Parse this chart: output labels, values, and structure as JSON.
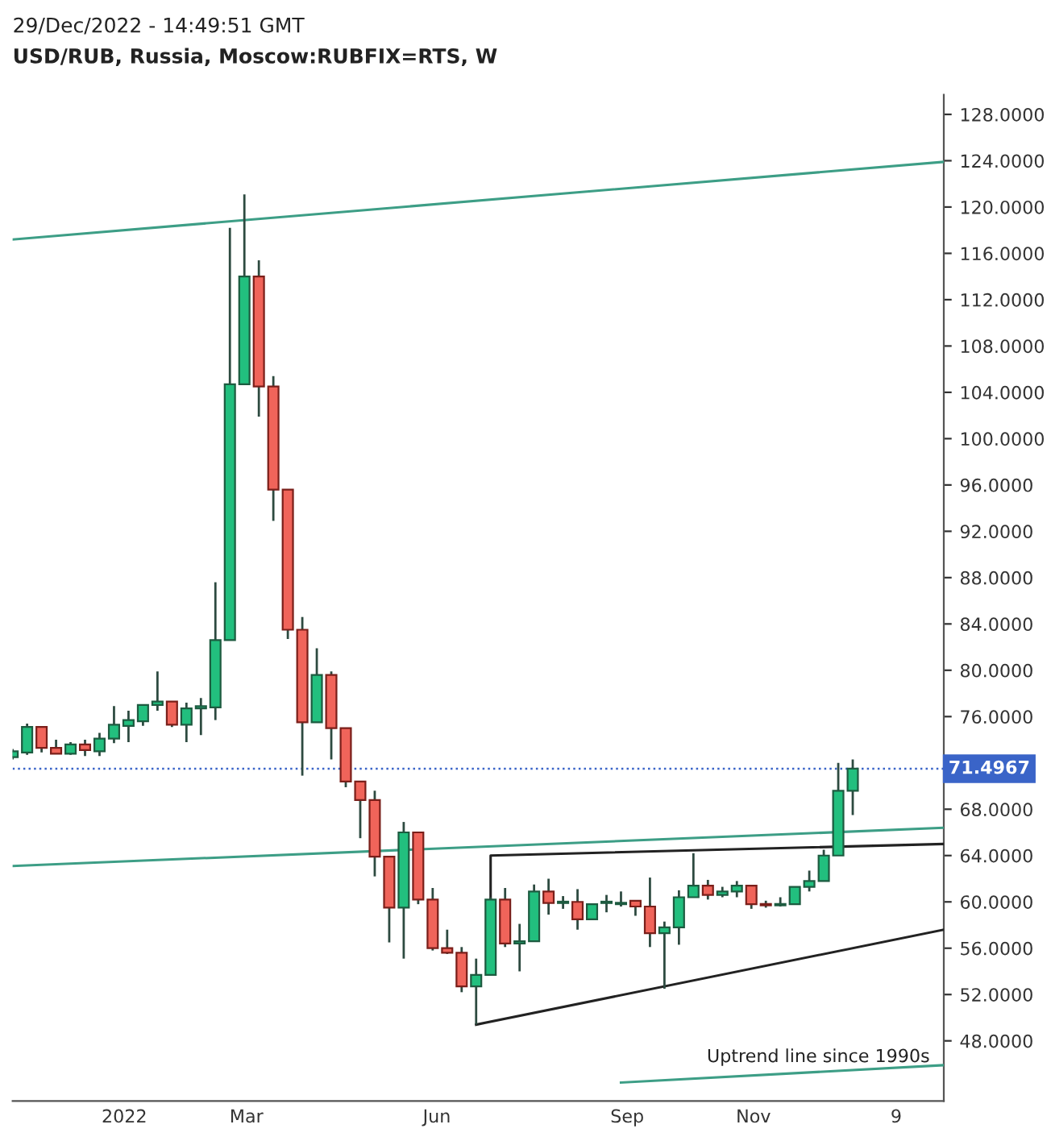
{
  "chart_data": {
    "type": "candlestick",
    "title": "29/Dec/2022 - 14:49:51 GMT",
    "subtitle": "USD/RUB, Russia, Moscow:RUBFIX=RTS, W",
    "x": [
      "2021-11-08",
      "2021-11-15",
      "2021-11-22",
      "2021-11-29",
      "2021-12-06",
      "2021-12-13",
      "2021-12-20",
      "2021-12-27",
      "2022-01-03",
      "2022-01-10",
      "2022-01-17",
      "2022-01-24",
      "2022-01-31",
      "2022-02-07",
      "2022-02-14",
      "2022-02-21",
      "2022-02-28",
      "2022-03-07",
      "2022-03-14",
      "2022-03-21",
      "2022-03-28",
      "2022-04-04",
      "2022-04-11",
      "2022-04-18",
      "2022-04-25",
      "2022-05-02",
      "2022-05-09",
      "2022-05-16",
      "2022-05-23",
      "2022-05-30",
      "2022-06-06",
      "2022-06-13",
      "2022-06-20",
      "2022-06-27",
      "2022-07-04",
      "2022-07-11",
      "2022-07-18",
      "2022-07-25",
      "2022-08-01",
      "2022-08-08",
      "2022-08-15",
      "2022-08-22",
      "2022-08-29",
      "2022-09-05",
      "2022-09-12",
      "2022-09-19",
      "2022-09-26",
      "2022-10-03",
      "2022-10-10",
      "2022-10-17",
      "2022-10-24",
      "2022-10-31",
      "2022-11-07",
      "2022-11-14",
      "2022-11-21",
      "2022-11-28",
      "2022-12-05",
      "2022-12-12",
      "2022-12-19"
    ],
    "ohlc": [
      [
        72.5,
        73.2,
        72.3,
        73.0
      ],
      [
        72.9,
        75.4,
        72.7,
        75.1
      ],
      [
        75.1,
        75.1,
        72.9,
        73.3
      ],
      [
        73.3,
        74.0,
        72.8,
        72.8
      ],
      [
        72.8,
        73.8,
        72.7,
        73.6
      ],
      [
        73.6,
        74.0,
        72.6,
        73.1
      ],
      [
        73.0,
        74.6,
        72.6,
        74.1
      ],
      [
        74.1,
        76.9,
        73.7,
        75.3
      ],
      [
        75.2,
        76.5,
        73.8,
        75.7
      ],
      [
        75.6,
        77.0,
        75.2,
        77.0
      ],
      [
        77.0,
        79.9,
        76.5,
        77.3
      ],
      [
        77.3,
        77.3,
        75.1,
        75.3
      ],
      [
        75.3,
        77.2,
        73.8,
        76.7
      ],
      [
        76.7,
        77.6,
        74.4,
        76.9
      ],
      [
        76.8,
        87.6,
        75.7,
        82.6
      ],
      [
        82.6,
        118.2,
        82.6,
        104.7
      ],
      [
        104.7,
        121.1,
        104.7,
        114.0
      ],
      [
        114.0,
        115.4,
        101.9,
        104.5
      ],
      [
        104.5,
        105.4,
        92.9,
        95.6
      ],
      [
        95.6,
        95.6,
        82.7,
        83.5
      ],
      [
        83.5,
        84.6,
        70.9,
        75.5
      ],
      [
        75.5,
        81.9,
        75.5,
        79.6
      ],
      [
        79.6,
        79.9,
        72.3,
        75.0
      ],
      [
        75.0,
        75.0,
        69.9,
        70.4
      ],
      [
        70.4,
        70.4,
        65.5,
        68.8
      ],
      [
        68.8,
        69.6,
        62.2,
        63.9
      ],
      [
        63.9,
        63.9,
        56.5,
        59.5
      ],
      [
        59.5,
        66.9,
        55.1,
        66.0
      ],
      [
        66.0,
        66.0,
        59.8,
        60.2
      ],
      [
        60.2,
        61.2,
        55.8,
        56.0
      ],
      [
        56.0,
        57.6,
        55.5,
        55.6
      ],
      [
        55.6,
        56.1,
        52.2,
        52.7
      ],
      [
        52.7,
        55.1,
        49.4,
        53.7
      ],
      [
        53.7,
        60.4,
        53.7,
        60.2
      ],
      [
        60.2,
        61.2,
        56.1,
        56.4
      ],
      [
        56.4,
        58.1,
        54.0,
        56.6
      ],
      [
        56.6,
        61.5,
        56.6,
        60.9
      ],
      [
        60.9,
        62.0,
        58.9,
        59.9
      ],
      [
        59.9,
        60.5,
        59.4,
        60.0
      ],
      [
        60.0,
        61.1,
        57.6,
        58.5
      ],
      [
        58.5,
        59.8,
        58.5,
        59.8
      ],
      [
        59.9,
        60.6,
        59.1,
        60.0
      ],
      [
        59.8,
        60.9,
        59.6,
        59.9
      ],
      [
        60.1,
        60.1,
        58.8,
        59.6
      ],
      [
        59.6,
        62.1,
        56.1,
        57.3
      ],
      [
        57.3,
        58.3,
        52.5,
        57.8
      ],
      [
        57.8,
        61.0,
        56.3,
        60.4
      ],
      [
        60.4,
        64.2,
        60.4,
        61.4
      ],
      [
        61.4,
        61.9,
        60.2,
        60.6
      ],
      [
        60.6,
        61.3,
        60.4,
        60.9
      ],
      [
        60.9,
        61.8,
        60.4,
        61.4
      ],
      [
        61.4,
        61.4,
        59.4,
        59.8
      ],
      [
        59.8,
        60.1,
        59.5,
        59.7
      ],
      [
        59.7,
        60.4,
        59.6,
        59.8
      ],
      [
        59.8,
        61.3,
        59.8,
        61.3
      ],
      [
        61.3,
        62.7,
        60.9,
        61.8
      ],
      [
        61.8,
        64.5,
        61.8,
        64.0
      ],
      [
        64.0,
        72.0,
        64.0,
        69.6
      ],
      [
        69.6,
        72.3,
        67.5,
        71.5
      ]
    ],
    "colors": [
      "#22bf7e",
      "#22bf7e",
      "#f0645a",
      "#f0645a",
      "#22bf7e",
      "#f0645a",
      "#22bf7e",
      "#22bf7e",
      "#22bf7e",
      "#22bf7e",
      "#22bf7e",
      "#f0645a",
      "#22bf7e",
      "#22bf7e",
      "#22bf7e",
      "#22bf7e",
      "#22bf7e",
      "#f0645a",
      "#f0645a",
      "#f0645a",
      "#f0645a",
      "#22bf7e",
      "#f0645a",
      "#f0645a",
      "#f0645a",
      "#f0645a",
      "#f0645a",
      "#22bf7e",
      "#f0645a",
      "#f0645a",
      "#f0645a",
      "#f0645a",
      "#22bf7e",
      "#22bf7e",
      "#f0645a",
      "#22bf7e",
      "#22bf7e",
      "#f0645a",
      "#22bf7e",
      "#f0645a",
      "#22bf7e",
      "#22bf7e",
      "#22bf7e",
      "#f0645a",
      "#f0645a",
      "#22bf7e",
      "#22bf7e",
      "#22bf7e",
      "#f0645a",
      "#22bf7e",
      "#22bf7e",
      "#f0645a",
      "#f0645a",
      "#22bf7e",
      "#22bf7e",
      "#22bf7e",
      "#22bf7e",
      "#22bf7e",
      "#22bf7e"
    ],
    "series": [
      {
        "type": "line",
        "color": "#3d9e86",
        "x": [
          "2021-11-08",
          "2023-02-01"
        ],
        "values": [
          117.2,
          123.9
        ]
      },
      {
        "type": "line",
        "color": "#3d9e86",
        "x": [
          "2021-11-08",
          "2023-02-01"
        ],
        "values": [
          63.1,
          66.4
        ]
      },
      {
        "type": "line",
        "color": "#3d9e86",
        "x": [
          "2022-08-29",
          "2023-02-01"
        ],
        "values": [
          44.4,
          45.9
        ]
      },
      {
        "type": "line",
        "color": "#222222",
        "x": [
          "2022-06-27",
          "2022-06-27",
          "2023-02-01"
        ],
        "values": [
          60.2,
          64.0,
          65.0
        ]
      },
      {
        "type": "line",
        "color": "#222222",
        "x": [
          "2022-06-20",
          "2023-02-01"
        ],
        "values": [
          49.4,
          57.6
        ]
      }
    ],
    "ref_lines": [
      {
        "axis": "y",
        "value": 71.4967,
        "label": "71.4967",
        "color": "#3a64c8",
        "line_style": "dotted"
      }
    ],
    "annotations": [
      "Uptrend line since 1990s"
    ],
    "xlim": [
      "2021-11-08",
      "2023-02-01"
    ],
    "xticks": [
      {
        "value": "2022-01-01",
        "label": "2022"
      },
      {
        "value": "2022-03-01",
        "label": "Mar"
      },
      {
        "value": "2022-06-01",
        "label": "Jun"
      },
      {
        "value": "2022-09-01",
        "label": "Sep"
      },
      {
        "value": "2022-11-01",
        "label": "Nov"
      },
      {
        "value": "2023-01-09",
        "label": "9"
      }
    ],
    "ylim": [
      42.8,
      129.7
    ],
    "yticks": [
      {
        "value": 48,
        "label": "48.0000"
      },
      {
        "value": 52,
        "label": "52.0000"
      },
      {
        "value": 56,
        "label": "56.0000"
      },
      {
        "value": 60,
        "label": "60.0000"
      },
      {
        "value": 64,
        "label": "64.0000"
      },
      {
        "value": 68,
        "label": "68.0000"
      },
      {
        "value": 76,
        "label": "76.0000"
      },
      {
        "value": 80,
        "label": "80.0000"
      },
      {
        "value": 84,
        "label": "84.0000"
      },
      {
        "value": 88,
        "label": "88.0000"
      },
      {
        "value": 92,
        "label": "92.0000"
      },
      {
        "value": 96,
        "label": "96.0000"
      },
      {
        "value": 100,
        "label": "100.0000"
      },
      {
        "value": 104,
        "label": "104.0000"
      },
      {
        "value": 108,
        "label": "108.0000"
      },
      {
        "value": 112,
        "label": "112.0000"
      },
      {
        "value": 116,
        "label": "116.0000"
      },
      {
        "value": 120,
        "label": "120.0000"
      },
      {
        "value": 124,
        "label": "124.0000"
      },
      {
        "value": 128,
        "label": "128.0000"
      }
    ],
    "grid": false
  }
}
